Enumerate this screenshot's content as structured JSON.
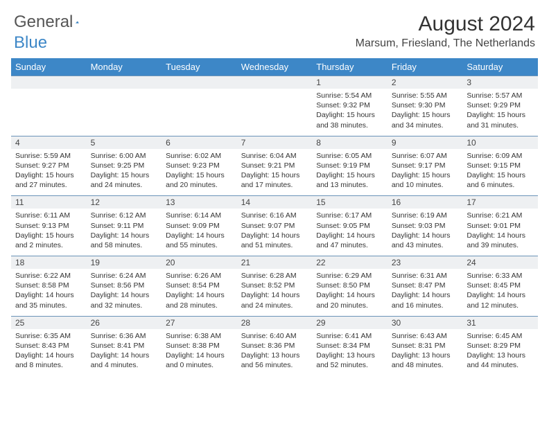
{
  "brand": {
    "part1": "General",
    "part2": "Blue"
  },
  "title": "August 2024",
  "location": "Marsum, Friesland, The Netherlands",
  "colors": {
    "header_bg": "#3d87c7",
    "daynum_bg": "#eef0f2",
    "divider": "#6a93b8",
    "text": "#333333",
    "brand_blue": "#3d87c7"
  },
  "typography": {
    "title_fontsize": 30,
    "location_fontsize": 16,
    "dayhead_fontsize": 13,
    "cell_fontsize": 10.5
  },
  "day_headers": [
    "Sunday",
    "Monday",
    "Tuesday",
    "Wednesday",
    "Thursday",
    "Friday",
    "Saturday"
  ],
  "weeks": [
    [
      null,
      null,
      null,
      null,
      {
        "num": "1",
        "sunrise": "5:54 AM",
        "sunset": "9:32 PM",
        "daylight": "15 hours and 38 minutes."
      },
      {
        "num": "2",
        "sunrise": "5:55 AM",
        "sunset": "9:30 PM",
        "daylight": "15 hours and 34 minutes."
      },
      {
        "num": "3",
        "sunrise": "5:57 AM",
        "sunset": "9:29 PM",
        "daylight": "15 hours and 31 minutes."
      }
    ],
    [
      {
        "num": "4",
        "sunrise": "5:59 AM",
        "sunset": "9:27 PM",
        "daylight": "15 hours and 27 minutes."
      },
      {
        "num": "5",
        "sunrise": "6:00 AM",
        "sunset": "9:25 PM",
        "daylight": "15 hours and 24 minutes."
      },
      {
        "num": "6",
        "sunrise": "6:02 AM",
        "sunset": "9:23 PM",
        "daylight": "15 hours and 20 minutes."
      },
      {
        "num": "7",
        "sunrise": "6:04 AM",
        "sunset": "9:21 PM",
        "daylight": "15 hours and 17 minutes."
      },
      {
        "num": "8",
        "sunrise": "6:05 AM",
        "sunset": "9:19 PM",
        "daylight": "15 hours and 13 minutes."
      },
      {
        "num": "9",
        "sunrise": "6:07 AM",
        "sunset": "9:17 PM",
        "daylight": "15 hours and 10 minutes."
      },
      {
        "num": "10",
        "sunrise": "6:09 AM",
        "sunset": "9:15 PM",
        "daylight": "15 hours and 6 minutes."
      }
    ],
    [
      {
        "num": "11",
        "sunrise": "6:11 AM",
        "sunset": "9:13 PM",
        "daylight": "15 hours and 2 minutes."
      },
      {
        "num": "12",
        "sunrise": "6:12 AM",
        "sunset": "9:11 PM",
        "daylight": "14 hours and 58 minutes."
      },
      {
        "num": "13",
        "sunrise": "6:14 AM",
        "sunset": "9:09 PM",
        "daylight": "14 hours and 55 minutes."
      },
      {
        "num": "14",
        "sunrise": "6:16 AM",
        "sunset": "9:07 PM",
        "daylight": "14 hours and 51 minutes."
      },
      {
        "num": "15",
        "sunrise": "6:17 AM",
        "sunset": "9:05 PM",
        "daylight": "14 hours and 47 minutes."
      },
      {
        "num": "16",
        "sunrise": "6:19 AM",
        "sunset": "9:03 PM",
        "daylight": "14 hours and 43 minutes."
      },
      {
        "num": "17",
        "sunrise": "6:21 AM",
        "sunset": "9:01 PM",
        "daylight": "14 hours and 39 minutes."
      }
    ],
    [
      {
        "num": "18",
        "sunrise": "6:22 AM",
        "sunset": "8:58 PM",
        "daylight": "14 hours and 35 minutes."
      },
      {
        "num": "19",
        "sunrise": "6:24 AM",
        "sunset": "8:56 PM",
        "daylight": "14 hours and 32 minutes."
      },
      {
        "num": "20",
        "sunrise": "6:26 AM",
        "sunset": "8:54 PM",
        "daylight": "14 hours and 28 minutes."
      },
      {
        "num": "21",
        "sunrise": "6:28 AM",
        "sunset": "8:52 PM",
        "daylight": "14 hours and 24 minutes."
      },
      {
        "num": "22",
        "sunrise": "6:29 AM",
        "sunset": "8:50 PM",
        "daylight": "14 hours and 20 minutes."
      },
      {
        "num": "23",
        "sunrise": "6:31 AM",
        "sunset": "8:47 PM",
        "daylight": "14 hours and 16 minutes."
      },
      {
        "num": "24",
        "sunrise": "6:33 AM",
        "sunset": "8:45 PM",
        "daylight": "14 hours and 12 minutes."
      }
    ],
    [
      {
        "num": "25",
        "sunrise": "6:35 AM",
        "sunset": "8:43 PM",
        "daylight": "14 hours and 8 minutes."
      },
      {
        "num": "26",
        "sunrise": "6:36 AM",
        "sunset": "8:41 PM",
        "daylight": "14 hours and 4 minutes."
      },
      {
        "num": "27",
        "sunrise": "6:38 AM",
        "sunset": "8:38 PM",
        "daylight": "14 hours and 0 minutes."
      },
      {
        "num": "28",
        "sunrise": "6:40 AM",
        "sunset": "8:36 PM",
        "daylight": "13 hours and 56 minutes."
      },
      {
        "num": "29",
        "sunrise": "6:41 AM",
        "sunset": "8:34 PM",
        "daylight": "13 hours and 52 minutes."
      },
      {
        "num": "30",
        "sunrise": "6:43 AM",
        "sunset": "8:31 PM",
        "daylight": "13 hours and 48 minutes."
      },
      {
        "num": "31",
        "sunrise": "6:45 AM",
        "sunset": "8:29 PM",
        "daylight": "13 hours and 44 minutes."
      }
    ]
  ],
  "labels": {
    "sunrise": "Sunrise: ",
    "sunset": "Sunset: ",
    "daylight": "Daylight: "
  }
}
